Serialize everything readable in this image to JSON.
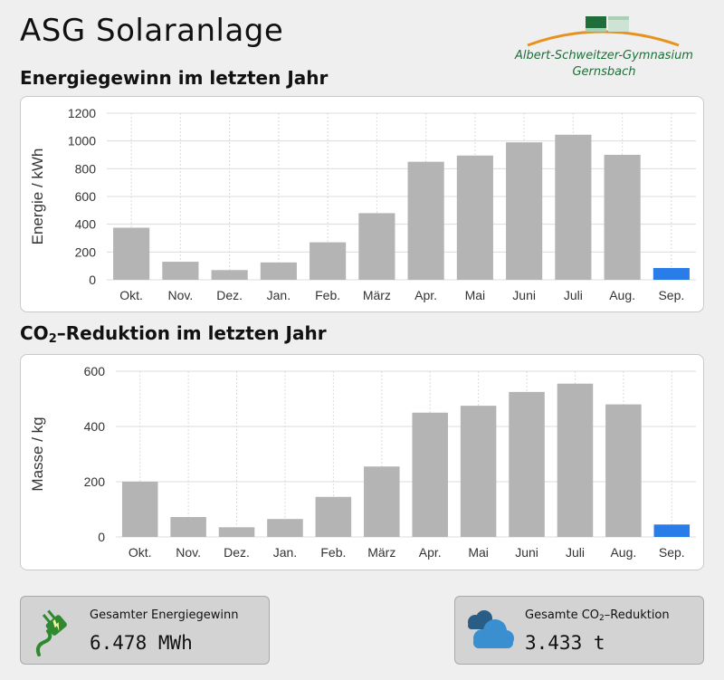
{
  "header": {
    "title": "ASG Solaranlage",
    "logo_line1": "Albert-Schweitzer-Gymnasium",
    "logo_line2": "Gernsbach"
  },
  "energy_section": {
    "title": "Energiegewinn im letzten Jahr"
  },
  "co2_section": {
    "title_prefix": "CO",
    "title_sub": "2",
    "title_suffix": "–Reduktion im letzten Jahr"
  },
  "chart_data": [
    {
      "type": "bar",
      "ylabel": "Energie / kWh",
      "ylim": [
        0,
        1200
      ],
      "yticks": [
        0,
        200,
        400,
        600,
        800,
        1000,
        1200
      ],
      "grid": true,
      "categories": [
        "Okt.",
        "Nov.",
        "Dez.",
        "Jan.",
        "Feb.",
        "März",
        "Apr.",
        "Mai",
        "Juni",
        "Juli",
        "Aug.",
        "Sep."
      ],
      "values": [
        375,
        130,
        70,
        125,
        270,
        480,
        850,
        895,
        990,
        1045,
        900,
        85
      ],
      "highlight_index": 11,
      "colors": {
        "bar": "#b4b4b4",
        "highlight": "#2a7de8"
      }
    },
    {
      "type": "bar",
      "ylabel": "Masse / kg",
      "ylim": [
        0,
        600
      ],
      "yticks": [
        0,
        200,
        400,
        600
      ],
      "grid": true,
      "categories": [
        "Okt.",
        "Nov.",
        "Dez.",
        "Jan.",
        "Feb.",
        "März",
        "Apr.",
        "Mai",
        "Juni",
        "Juli",
        "Aug.",
        "Sep."
      ],
      "values": [
        200,
        72,
        35,
        65,
        145,
        255,
        450,
        475,
        525,
        555,
        480,
        45
      ],
      "highlight_index": 11,
      "colors": {
        "bar": "#b4b4b4",
        "highlight": "#2a7de8"
      }
    }
  ],
  "cards": {
    "energy": {
      "label": "Gesamter Energiegewinn",
      "value": "6.478 MWh",
      "icon": "plug-icon"
    },
    "co2": {
      "label_prefix": "Gesamte CO",
      "label_sub": "2",
      "label_suffix": "–Reduktion",
      "value": "3.433 t",
      "icon": "cloud-icon"
    }
  },
  "colors": {
    "logo_green": "#1f6e3a",
    "logo_orange": "#e8921e",
    "plug_green": "#2f8a2f",
    "cloud_blue": "#3a8fd0"
  }
}
